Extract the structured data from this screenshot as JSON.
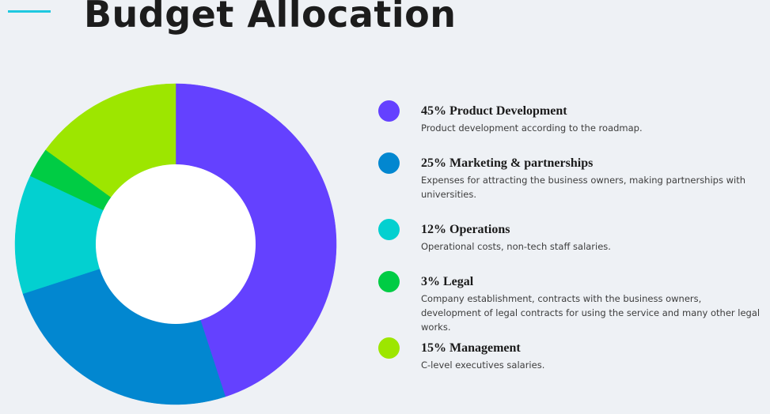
{
  "page": {
    "title": "Budget Allocation"
  },
  "colors": {
    "background": "#eef1f5",
    "accent_line": "#1ec8e0",
    "hole": "#ffffff"
  },
  "chart_data": {
    "type": "pie",
    "variant": "donut",
    "categories": [
      "Product Development",
      "Marketing & partnerships",
      "Operations",
      "Legal",
      "Management"
    ],
    "values": [
      45,
      25,
      12,
      3,
      15
    ],
    "unit": "%",
    "colors": [
      "#6441ff",
      "#0287d0",
      "#03d0d0",
      "#00cc44",
      "#9de600"
    ],
    "start_angle_deg": 0,
    "direction": "clockwise",
    "legend_position": "right"
  },
  "legend": {
    "items": [
      {
        "label": "45% Product Development",
        "description": "Product development according to the roadmap.",
        "color": "#6441ff"
      },
      {
        "label": "25% Marketing & partnerships",
        "description": "Expenses for attracting the business owners, making partnerships with universities.",
        "color": "#0287d0"
      },
      {
        "label": "12% Operations",
        "description": "Operational costs, non-tech staff salaries.",
        "color": "#03d0d0"
      },
      {
        "label": "3% Legal",
        "description": "Company establishment, contracts with the business owners, development of legal contracts for using the service and many other legal works.",
        "color": "#00cc44"
      },
      {
        "label": "15% Management",
        "description": "C-level executives salaries.",
        "color": "#9de600"
      }
    ]
  }
}
